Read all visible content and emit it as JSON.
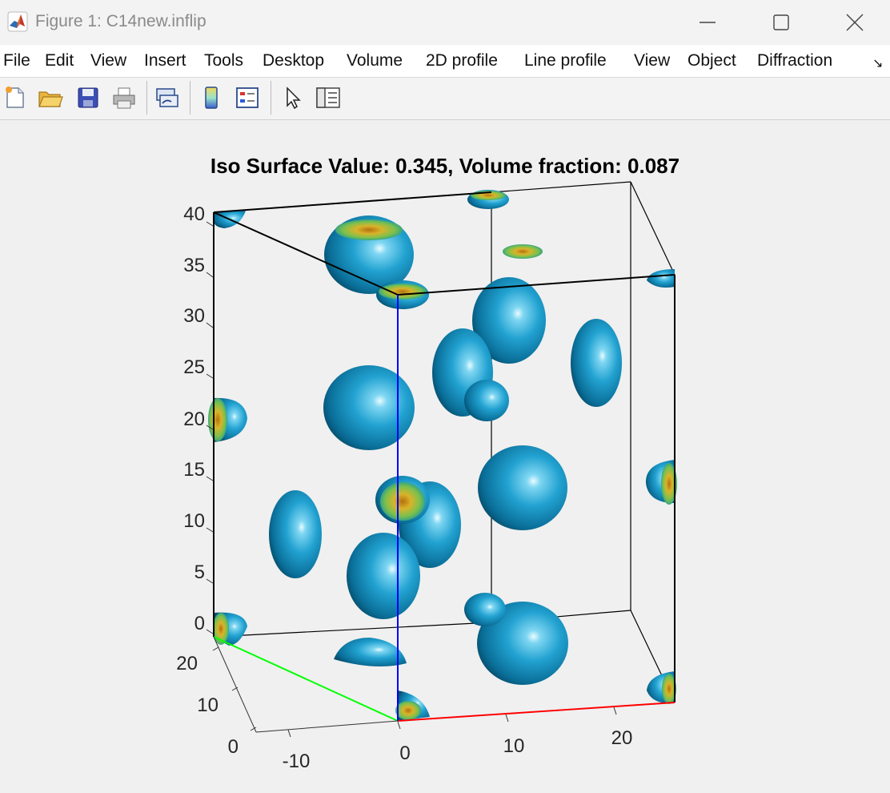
{
  "window": {
    "title": "Figure 1: C14new.inflip",
    "app_icon": "matlab-icon",
    "controls": [
      "minimize-icon",
      "maximize-icon",
      "close-icon"
    ]
  },
  "menubar": {
    "items": [
      "File",
      "Edit",
      "View",
      "Insert",
      "Tools",
      "Desktop",
      "Volume",
      "2D profile",
      "Line profile",
      "View",
      "Object",
      "Diffraction"
    ],
    "overflow_icon": "menu-overflow-icon"
  },
  "toolbar": {
    "tools": [
      "new-figure-icon",
      "open-file-icon",
      "save-icon",
      "print-icon",
      "link-plot-icon",
      "colorbar-icon",
      "legend-icon",
      "pointer-icon",
      "property-editor-icon"
    ]
  },
  "figure": {
    "title": "Iso Surface Value: 0.345, Volume fraction: 0.087",
    "colors": {
      "x_axis": "#ff0000",
      "y_axis": "#00ff00",
      "z_axis": "#0000ff",
      "isosurface": "#1a8fbf",
      "cap": "#c9a020"
    },
    "z_axis": {
      "ticks": [
        "0",
        "5",
        "10",
        "15",
        "20",
        "25",
        "30",
        "35",
        "40"
      ],
      "range": [
        0,
        40
      ]
    },
    "y_axis": {
      "ticks": [
        "0",
        "10",
        "20"
      ],
      "range": [
        0,
        25
      ]
    },
    "x_axis": {
      "ticks": [
        "-10",
        "0",
        "10",
        "20"
      ],
      "range": [
        -12,
        25
      ]
    }
  }
}
